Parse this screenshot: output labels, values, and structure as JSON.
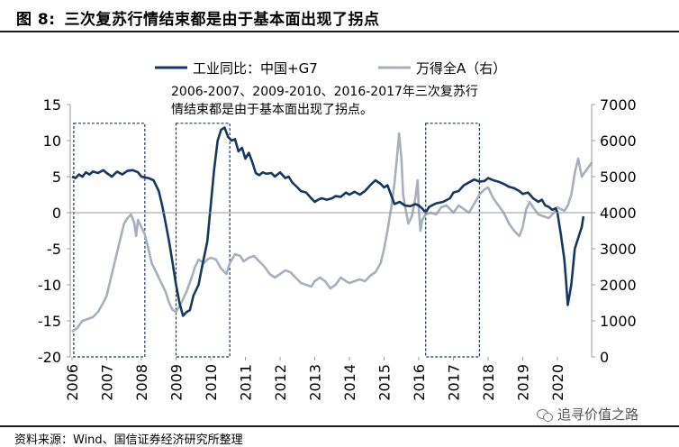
{
  "header": {
    "figure_label": "图  8:",
    "title": "三次复苏行情结束都是由于基本面出现了拐点"
  },
  "footer": {
    "source": "资料来源：Wind、国信证券经济研究所整理",
    "watermark": "追寻价值之路"
  },
  "colors": {
    "series1": "#17375e",
    "series2": "#a6b0bd",
    "box": "#17375e"
  },
  "chart_data": {
    "type": "line",
    "title": "三次复苏行情结束都是由于基本面出现了拐点",
    "annotation": [
      "2006-2007、2009-2010、2016-2017年三次复苏行",
      "情结束都是由于基本面出现了拐点。"
    ],
    "x_ticks": [
      "2006",
      "2007",
      "2008",
      "2009",
      "2010",
      "2011",
      "2012",
      "2013",
      "2014",
      "2015",
      "2016",
      "2017",
      "2018",
      "2019",
      "2020"
    ],
    "y_left_ticks": [
      "15",
      "10",
      "5",
      "0",
      "-5",
      "-10",
      "-15",
      "-20"
    ],
    "y_right_ticks": [
      "7000",
      "6000",
      "5000",
      "4000",
      "3000",
      "2000",
      "1000",
      "0"
    ],
    "ylim_left": [
      -20,
      15
    ],
    "ylim_right": [
      0,
      7000
    ],
    "xlim": [
      2006,
      2021.0
    ],
    "highlight_periods": [
      [
        2006.05,
        2008.1
      ],
      [
        2009.0,
        2010.55
      ],
      [
        2016.2,
        2017.75
      ]
    ],
    "series": [
      {
        "name": "工业同比：中国+G7",
        "axis": "left",
        "points": [
          [
            2006.0,
            5.0
          ],
          [
            2006.1,
            4.8
          ],
          [
            2006.2,
            5.3
          ],
          [
            2006.3,
            5.0
          ],
          [
            2006.4,
            5.6
          ],
          [
            2006.5,
            5.3
          ],
          [
            2006.6,
            5.7
          ],
          [
            2006.75,
            5.5
          ],
          [
            2006.9,
            5.9
          ],
          [
            2007.0,
            5.5
          ],
          [
            2007.15,
            5.0
          ],
          [
            2007.3,
            5.7
          ],
          [
            2007.45,
            5.3
          ],
          [
            2007.6,
            5.8
          ],
          [
            2007.75,
            5.9
          ],
          [
            2007.9,
            5.6
          ],
          [
            2008.0,
            5.0
          ],
          [
            2008.2,
            4.8
          ],
          [
            2008.35,
            4.5
          ],
          [
            2008.5,
            3.0
          ],
          [
            2008.6,
            1.0
          ],
          [
            2008.7,
            -1.5
          ],
          [
            2008.8,
            -4.0
          ],
          [
            2008.9,
            -7.0
          ],
          [
            2009.0,
            -10.0
          ],
          [
            2009.1,
            -12.5
          ],
          [
            2009.2,
            -14.3
          ],
          [
            2009.3,
            -13.8
          ],
          [
            2009.4,
            -13.5
          ],
          [
            2009.5,
            -11.5
          ],
          [
            2009.65,
            -10.0
          ],
          [
            2009.75,
            -7.5
          ],
          [
            2009.9,
            -4.0
          ],
          [
            2010.0,
            1.0
          ],
          [
            2010.1,
            6.0
          ],
          [
            2010.2,
            10.0
          ],
          [
            2010.3,
            11.5
          ],
          [
            2010.4,
            11.8
          ],
          [
            2010.5,
            10.5
          ],
          [
            2010.6,
            10.0
          ],
          [
            2010.7,
            10.2
          ],
          [
            2010.8,
            8.5
          ],
          [
            2010.9,
            9.0
          ],
          [
            2011.0,
            7.5
          ],
          [
            2011.1,
            8.3
          ],
          [
            2011.2,
            7.0
          ],
          [
            2011.3,
            5.5
          ],
          [
            2011.4,
            5.2
          ],
          [
            2011.5,
            5.6
          ],
          [
            2011.6,
            5.4
          ],
          [
            2011.75,
            5.5
          ],
          [
            2011.85,
            5.0
          ],
          [
            2012.0,
            5.6
          ],
          [
            2012.15,
            4.8
          ],
          [
            2012.25,
            5.0
          ],
          [
            2012.35,
            4.2
          ],
          [
            2012.5,
            3.5
          ],
          [
            2012.6,
            3.0
          ],
          [
            2012.75,
            2.8
          ],
          [
            2012.9,
            2.0
          ],
          [
            2013.0,
            1.5
          ],
          [
            2013.1,
            1.8
          ],
          [
            2013.2,
            2.0
          ],
          [
            2013.35,
            1.8
          ],
          [
            2013.5,
            2.0
          ],
          [
            2013.6,
            2.3
          ],
          [
            2013.75,
            2.2
          ],
          [
            2013.9,
            2.8
          ],
          [
            2014.0,
            2.5
          ],
          [
            2014.15,
            2.9
          ],
          [
            2014.3,
            2.5
          ],
          [
            2014.45,
            3.0
          ],
          [
            2014.6,
            3.8
          ],
          [
            2014.75,
            4.5
          ],
          [
            2014.9,
            4.0
          ],
          [
            2015.0,
            3.5
          ],
          [
            2015.1,
            3.8
          ],
          [
            2015.2,
            2.5
          ],
          [
            2015.3,
            1.2
          ],
          [
            2015.45,
            1.5
          ],
          [
            2015.6,
            1.0
          ],
          [
            2015.75,
            0.9
          ],
          [
            2015.9,
            1.2
          ],
          [
            2016.0,
            1.0
          ],
          [
            2016.1,
            0.6
          ],
          [
            2016.2,
            0.0
          ],
          [
            2016.3,
            0.8
          ],
          [
            2016.5,
            1.3
          ],
          [
            2016.7,
            1.5
          ],
          [
            2016.9,
            2.0
          ],
          [
            2017.0,
            2.8
          ],
          [
            2017.15,
            3.0
          ],
          [
            2017.3,
            3.8
          ],
          [
            2017.45,
            4.2
          ],
          [
            2017.6,
            4.6
          ],
          [
            2017.75,
            4.3
          ],
          [
            2017.9,
            4.4
          ],
          [
            2018.0,
            4.8
          ],
          [
            2018.15,
            4.5
          ],
          [
            2018.3,
            4.3
          ],
          [
            2018.45,
            4.0
          ],
          [
            2018.6,
            3.6
          ],
          [
            2018.75,
            3.4
          ],
          [
            2018.9,
            3.0
          ],
          [
            2019.0,
            2.6
          ],
          [
            2019.15,
            2.8
          ],
          [
            2019.3,
            2.0
          ],
          [
            2019.45,
            1.5
          ],
          [
            2019.55,
            1.8
          ],
          [
            2019.65,
            1.0
          ],
          [
            2019.75,
            0.8
          ],
          [
            2019.85,
            0.4
          ],
          [
            2019.95,
            0.6
          ],
          [
            2020.0,
            0.0
          ],
          [
            2020.1,
            -3.0
          ],
          [
            2020.2,
            -6.5
          ],
          [
            2020.25,
            -9.5
          ],
          [
            2020.3,
            -12.8
          ],
          [
            2020.4,
            -10.0
          ],
          [
            2020.5,
            -5.0
          ],
          [
            2020.6,
            -3.5
          ],
          [
            2020.7,
            -2.0
          ],
          [
            2020.75,
            -0.5
          ]
        ]
      },
      {
        "name": "万得全A（右）",
        "axis": "right",
        "points": [
          [
            2006.0,
            700
          ],
          [
            2006.15,
            800
          ],
          [
            2006.3,
            1000
          ],
          [
            2006.45,
            1050
          ],
          [
            2006.6,
            1100
          ],
          [
            2006.75,
            1250
          ],
          [
            2006.9,
            1500
          ],
          [
            2007.0,
            1700
          ],
          [
            2007.1,
            2100
          ],
          [
            2007.2,
            2500
          ],
          [
            2007.3,
            2900
          ],
          [
            2007.4,
            3300
          ],
          [
            2007.5,
            3700
          ],
          [
            2007.6,
            3850
          ],
          [
            2007.7,
            3950
          ],
          [
            2007.8,
            3700
          ],
          [
            2007.85,
            3350
          ],
          [
            2007.9,
            3800
          ],
          [
            2008.0,
            3600
          ],
          [
            2008.1,
            3400
          ],
          [
            2008.2,
            3000
          ],
          [
            2008.3,
            2600
          ],
          [
            2008.4,
            2400
          ],
          [
            2008.5,
            2200
          ],
          [
            2008.6,
            2000
          ],
          [
            2008.7,
            1800
          ],
          [
            2008.8,
            1500
          ],
          [
            2008.9,
            1300
          ],
          [
            2009.0,
            1250
          ],
          [
            2009.15,
            1500
          ],
          [
            2009.3,
            1800
          ],
          [
            2009.45,
            2200
          ],
          [
            2009.55,
            2500
          ],
          [
            2009.65,
            2700
          ],
          [
            2009.8,
            2600
          ],
          [
            2009.9,
            2700
          ],
          [
            2010.0,
            2750
          ],
          [
            2010.15,
            2700
          ],
          [
            2010.3,
            2450
          ],
          [
            2010.45,
            2300
          ],
          [
            2010.55,
            2600
          ],
          [
            2010.7,
            2850
          ],
          [
            2010.85,
            2800
          ],
          [
            2010.95,
            2650
          ],
          [
            2011.1,
            2750
          ],
          [
            2011.25,
            2800
          ],
          [
            2011.4,
            2650
          ],
          [
            2011.55,
            2500
          ],
          [
            2011.7,
            2300
          ],
          [
            2011.85,
            2200
          ],
          [
            2012.0,
            2300
          ],
          [
            2012.15,
            2400
          ],
          [
            2012.3,
            2350
          ],
          [
            2012.45,
            2200
          ],
          [
            2012.6,
            2050
          ],
          [
            2012.75,
            2000
          ],
          [
            2012.9,
            1950
          ],
          [
            2013.0,
            2100
          ],
          [
            2013.15,
            2200
          ],
          [
            2013.3,
            2100
          ],
          [
            2013.45,
            1900
          ],
          [
            2013.6,
            2000
          ],
          [
            2013.75,
            2200
          ],
          [
            2013.9,
            2100
          ],
          [
            2014.0,
            2050
          ],
          [
            2014.15,
            2100
          ],
          [
            2014.3,
            2150
          ],
          [
            2014.45,
            2100
          ],
          [
            2014.6,
            2250
          ],
          [
            2014.75,
            2350
          ],
          [
            2014.9,
            2600
          ],
          [
            2015.0,
            3000
          ],
          [
            2015.1,
            3500
          ],
          [
            2015.2,
            4100
          ],
          [
            2015.3,
            4800
          ],
          [
            2015.38,
            5600
          ],
          [
            2015.43,
            6200
          ],
          [
            2015.5,
            5500
          ],
          [
            2015.55,
            4500
          ],
          [
            2015.6,
            4200
          ],
          [
            2015.7,
            3700
          ],
          [
            2015.8,
            3900
          ],
          [
            2015.9,
            4400
          ],
          [
            2015.97,
            4900
          ],
          [
            2016.0,
            4100
          ],
          [
            2016.05,
            3500
          ],
          [
            2016.1,
            3800
          ],
          [
            2016.2,
            3950
          ],
          [
            2016.35,
            4000
          ],
          [
            2016.5,
            3950
          ],
          [
            2016.65,
            4150
          ],
          [
            2016.8,
            4200
          ],
          [
            2016.95,
            4050
          ],
          [
            2017.0,
            4000
          ],
          [
            2017.15,
            4200
          ],
          [
            2017.3,
            4100
          ],
          [
            2017.45,
            4000
          ],
          [
            2017.6,
            4250
          ],
          [
            2017.75,
            4500
          ],
          [
            2017.9,
            4650
          ],
          [
            2018.0,
            4700
          ],
          [
            2018.15,
            4400
          ],
          [
            2018.3,
            4200
          ],
          [
            2018.45,
            4000
          ],
          [
            2018.6,
            3700
          ],
          [
            2018.75,
            3500
          ],
          [
            2018.9,
            3350
          ],
          [
            2019.0,
            3600
          ],
          [
            2019.1,
            4100
          ],
          [
            2019.2,
            4300
          ],
          [
            2019.3,
            4150
          ],
          [
            2019.45,
            3950
          ],
          [
            2019.6,
            3900
          ],
          [
            2019.75,
            3850
          ],
          [
            2019.9,
            4000
          ],
          [
            2020.0,
            4150
          ],
          [
            2020.1,
            4100
          ],
          [
            2020.2,
            4050
          ],
          [
            2020.3,
            4200
          ],
          [
            2020.4,
            4500
          ],
          [
            2020.5,
            5100
          ],
          [
            2020.6,
            5500
          ],
          [
            2020.7,
            5000
          ],
          [
            2020.85,
            5200
          ],
          [
            2021.0,
            5400
          ]
        ]
      }
    ]
  }
}
